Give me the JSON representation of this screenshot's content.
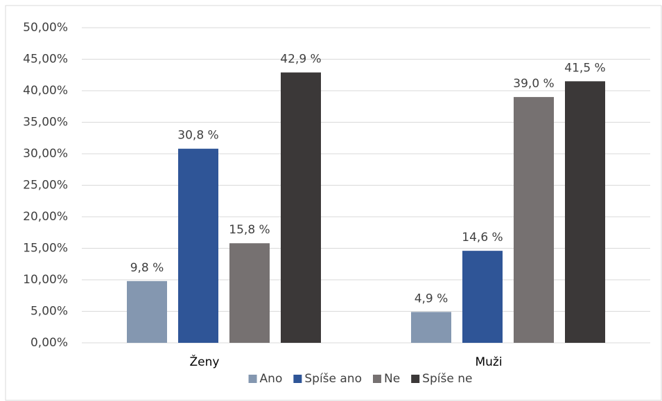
{
  "chart_data": {
    "type": "bar",
    "categories": [
      "Ženy",
      "Muži"
    ],
    "series": [
      {
        "name": "Ano",
        "color": "#8497b0",
        "values": [
          9.8,
          4.9
        ],
        "value_labels": [
          "9,8 %",
          "4,9 %"
        ]
      },
      {
        "name": "Spíše ano",
        "color": "#2f5597",
        "values": [
          30.8,
          14.6
        ],
        "value_labels": [
          "30,8 %",
          "14,6 %"
        ]
      },
      {
        "name": "Ne",
        "color": "#767171",
        "values": [
          15.8,
          39.0
        ],
        "value_labels": [
          "15,8 %",
          "39,0 %"
        ]
      },
      {
        "name": "Spíše ne",
        "color": "#3b3838",
        "values": [
          42.9,
          41.5
        ],
        "value_labels": [
          "42,9 %",
          "41,5 %"
        ]
      }
    ],
    "ylim": [
      0,
      50
    ],
    "yticks": [
      {
        "value": 0,
        "label": "0,00%"
      },
      {
        "value": 5,
        "label": "5,00%"
      },
      {
        "value": 10,
        "label": "10,00%"
      },
      {
        "value": 15,
        "label": "15,00%"
      },
      {
        "value": 20,
        "label": "20,00%"
      },
      {
        "value": 25,
        "label": "25,00%"
      },
      {
        "value": 30,
        "label": "30,00%"
      },
      {
        "value": 35,
        "label": "35,00%"
      },
      {
        "value": 40,
        "label": "40,00%"
      },
      {
        "value": 45,
        "label": "45,00%"
      },
      {
        "value": 50,
        "label": "50,00%"
      }
    ],
    "grid": true,
    "legend": "bottom"
  }
}
